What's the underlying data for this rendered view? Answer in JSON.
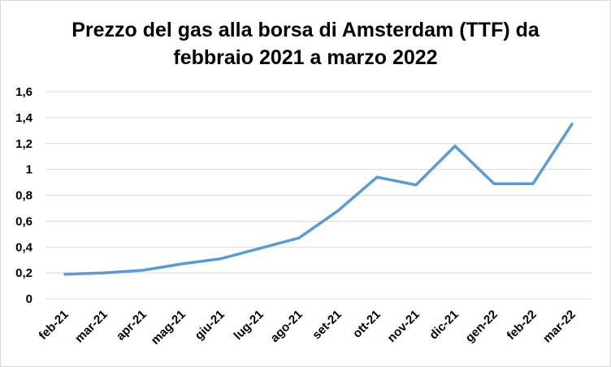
{
  "chart_data": {
    "type": "line",
    "title_line1": "Prezzo del gas alla borsa di Amsterdam (TTF) da",
    "title_line2": "febbraio 2021 a marzo 2022",
    "categories": [
      "feb-21",
      "mar-21",
      "apr-21",
      "mag-21",
      "giu-21",
      "lug-21",
      "ago-21",
      "set-21",
      "ott-21",
      "nov-21",
      "dic-21",
      "gen-22",
      "feb-22",
      "mar-22"
    ],
    "y_ticks": [
      "0",
      "0,2",
      "0,4",
      "0,6",
      "0,8",
      "1",
      "1,2",
      "1,4",
      "1,6"
    ],
    "series": [
      {
        "values": [
          0.19,
          0.2,
          0.22,
          0.27,
          0.31,
          0.39,
          0.47,
          0.68,
          0.94,
          0.88,
          1.18,
          0.89,
          0.89,
          1.35
        ]
      }
    ],
    "ylim": [
      0,
      1.6
    ],
    "grid": true,
    "line_color": "#5b9bd5",
    "grid_color": "#d9d9d9"
  }
}
